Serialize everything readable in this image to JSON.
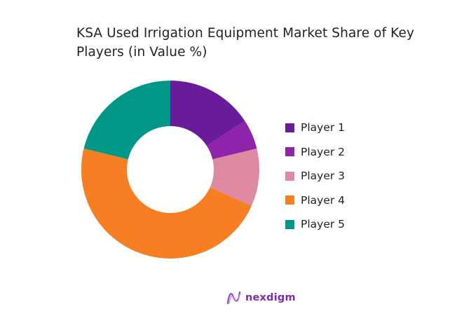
{
  "title": "KSA Used Irrigation Equipment Market Share of Key Players (in Value %)",
  "chart_data": {
    "type": "pie",
    "variant": "donut",
    "title": "KSA Used Irrigation Equipment Market Share of Key Players (in Value %)",
    "categories": [
      "Player 1",
      "Player 2",
      "Player 3",
      "Player 4",
      "Player 5"
    ],
    "values": [
      15.8,
      5.4,
      10.5,
      47.1,
      21.2
    ],
    "colors": [
      "#6a1b9a",
      "#8e24aa",
      "#de8aa3",
      "#f57f22",
      "#009688"
    ],
    "legend_position": "right",
    "start_angle": "top, clockwise"
  },
  "legend": [
    {
      "label": "Player 1",
      "color": "#6a1b9a"
    },
    {
      "label": "Player 2",
      "color": "#8e24aa"
    },
    {
      "label": "Player 3",
      "color": "#de8aa3"
    },
    {
      "label": "Player 4",
      "color": "#f57f22"
    },
    {
      "label": "Player 5",
      "color": "#009688"
    }
  ],
  "branding": {
    "logo_text": "nexdigm"
  }
}
